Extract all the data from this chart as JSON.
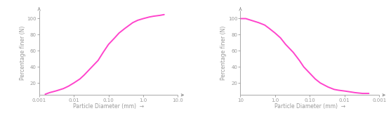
{
  "left": {
    "xlim": [
      0.001,
      10.0
    ],
    "ylim": [
      5,
      110
    ],
    "yticks": [
      20,
      40,
      60,
      80,
      100
    ],
    "xticks": [
      0.001,
      0.01,
      0.1,
      1.0,
      10.0
    ],
    "xticklabels": [
      "0.001",
      "0.01",
      "0.10",
      "1.0",
      "10.0"
    ],
    "xlabel": "Particle Diameter (mm)",
    "ylabel": "Percentage finer (N)",
    "curve_color": "#ff44cc",
    "curve_x": [
      0.0015,
      0.002,
      0.003,
      0.005,
      0.007,
      0.01,
      0.015,
      0.02,
      0.03,
      0.05,
      0.07,
      0.1,
      0.15,
      0.2,
      0.3,
      0.5,
      0.7,
      1.0,
      1.5,
      2.0,
      3.0,
      4.0
    ],
    "curve_y": [
      6,
      8,
      10,
      13,
      16,
      20,
      25,
      30,
      38,
      48,
      58,
      68,
      76,
      82,
      88,
      95,
      98,
      100,
      102,
      103,
      104,
      105
    ]
  },
  "right": {
    "xlim": [
      10.0,
      0.001
    ],
    "ylim": [
      5,
      110
    ],
    "yticks": [
      20,
      40,
      60,
      80,
      100
    ],
    "xticks": [
      10.0,
      1.0,
      0.1,
      0.01,
      0.001
    ],
    "xticklabels": [
      "10",
      "1.0",
      "0.10",
      "0.01",
      "0.001"
    ],
    "xlabel": "Particle Diameter (mm)",
    "ylabel": "Percentage finer (N)",
    "curve_color": "#ff44cc",
    "curve_x": [
      10.0,
      7.0,
      5.0,
      3.0,
      2.0,
      1.5,
      1.0,
      0.7,
      0.5,
      0.3,
      0.2,
      0.15,
      0.1,
      0.07,
      0.05,
      0.03,
      0.02,
      0.015,
      0.01,
      0.007,
      0.005,
      0.003,
      0.002
    ],
    "curve_y": [
      100,
      100,
      98,
      95,
      92,
      88,
      82,
      76,
      68,
      58,
      48,
      40,
      32,
      25,
      20,
      15,
      12,
      11,
      10,
      9,
      8,
      7,
      7
    ]
  },
  "background_color": "#ffffff",
  "axis_color": "#999999",
  "label_fontsize": 5.5,
  "tick_fontsize": 5,
  "linewidth": 1.4
}
